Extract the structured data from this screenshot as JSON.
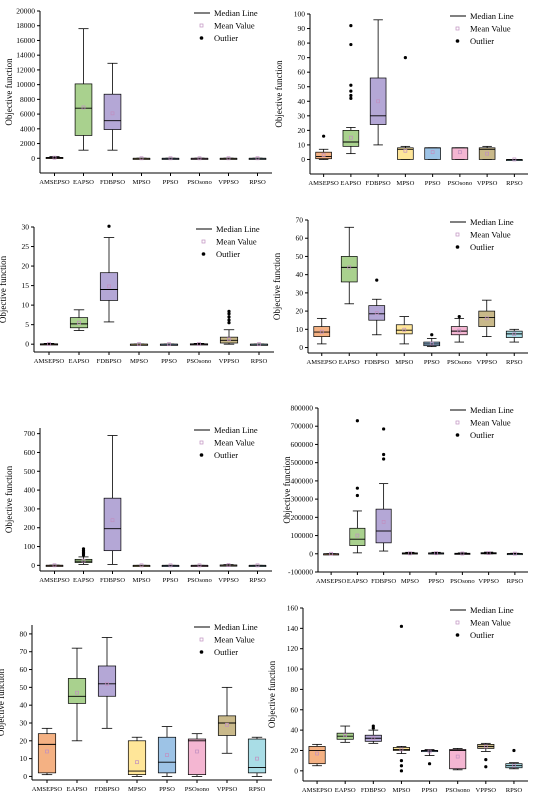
{
  "legend": {
    "median_label": "Median Line",
    "mean_label": "Mean Value",
    "outlier_label": "Outlier"
  },
  "chart_data": [
    {
      "type": "box",
      "ylabel": "Objective function",
      "ylim": [
        -2000,
        20000
      ],
      "yticks": [
        0,
        2000,
        4000,
        6000,
        8000,
        10000,
        12000,
        14000,
        16000,
        18000,
        20000
      ],
      "legend_position": "top-right",
      "categories": [
        "AMSEPSO",
        "EAPSO",
        "FDBPSO",
        "MPSO",
        "PPSO",
        "PSOsono",
        "VPPSO",
        "RPSO"
      ],
      "colors": [
        "#f4b183",
        "#a9d18e",
        "#b4a7d6",
        "#ffe699",
        "#9dc3e6",
        "#f4b6d2",
        "#c9b98a",
        "#a9dde6"
      ],
      "boxes": [
        {
          "whislo": 0,
          "q1": 20,
          "med": 60,
          "q3": 120,
          "whishi": 250,
          "mean": 80,
          "outliers": []
        },
        {
          "whislo": 1100,
          "q1": 3100,
          "med": 6800,
          "q3": 10100,
          "whishi": 17600,
          "mean": 6900,
          "outliers": []
        },
        {
          "whislo": 1100,
          "q1": 3900,
          "med": 5100,
          "q3": 8700,
          "whishi": 12900,
          "mean": 6100,
          "outliers": []
        },
        {
          "whislo": 0,
          "q1": 0,
          "med": 0,
          "q3": 0,
          "whishi": 0,
          "mean": 0,
          "outliers": []
        },
        {
          "whislo": 0,
          "q1": 0,
          "med": 0,
          "q3": 0,
          "whishi": 0,
          "mean": 0,
          "outliers": []
        },
        {
          "whislo": 0,
          "q1": 0,
          "med": 0,
          "q3": 0,
          "whishi": 0,
          "mean": 0,
          "outliers": []
        },
        {
          "whislo": 0,
          "q1": 0,
          "med": 0,
          "q3": 0,
          "whishi": 0,
          "mean": 0,
          "outliers": []
        },
        {
          "whislo": 0,
          "q1": 0,
          "med": 0,
          "q3": 0,
          "whishi": 0,
          "mean": 0,
          "outliers": []
        }
      ]
    },
    {
      "type": "box",
      "ylabel": "Objective function",
      "ylim": [
        -10,
        100
      ],
      "yticks": [
        0,
        10,
        20,
        30,
        40,
        50,
        60,
        70,
        80,
        90,
        100
      ],
      "legend_position": "top-right",
      "categories": [
        "AMSEPSO",
        "EAPSO",
        "FDBPSO",
        "MPSO",
        "PPSO",
        "PSOsono",
        "VPPSO",
        "RPSO"
      ],
      "colors": [
        "#f4b183",
        "#a9d18e",
        "#b4a7d6",
        "#ffe699",
        "#9dc3e6",
        "#f4b6d2",
        "#c9b98a",
        "#a9dde6"
      ],
      "boxes": [
        {
          "whislo": 0,
          "q1": 0.5,
          "med": 2,
          "q3": 5,
          "whishi": 7,
          "mean": 3,
          "outliers": [
            16
          ]
        },
        {
          "whislo": 4,
          "q1": 9,
          "med": 12,
          "q3": 20,
          "whishi": 22,
          "mean": 15,
          "outliers": [
            42,
            44,
            47,
            51,
            79,
            92
          ]
        },
        {
          "whislo": 10,
          "q1": 24,
          "med": 30,
          "q3": 56,
          "whishi": 96,
          "mean": 40,
          "outliers": []
        },
        {
          "whislo": 0,
          "q1": 0,
          "med": 7,
          "q3": 8,
          "whishi": 9,
          "mean": 6,
          "outliers": [
            70
          ]
        },
        {
          "whislo": 0,
          "q1": 0,
          "med": 8,
          "q3": 8,
          "whishi": 8,
          "mean": 5,
          "outliers": []
        },
        {
          "whislo": 0,
          "q1": 0,
          "med": 8,
          "q3": 8,
          "whishi": 8,
          "mean": 5,
          "outliers": []
        },
        {
          "whislo": 0,
          "q1": 0,
          "med": 7,
          "q3": 8,
          "whishi": 9,
          "mean": 4,
          "outliers": []
        },
        {
          "whislo": 0,
          "q1": 0,
          "med": 0,
          "q3": 0,
          "whishi": 0,
          "mean": 0,
          "outliers": []
        }
      ]
    },
    {
      "type": "box",
      "ylabel": "Objective function",
      "ylim": [
        -2,
        30
      ],
      "yticks": [
        0,
        5,
        10,
        15,
        20,
        25,
        30
      ],
      "legend_position": "top-right",
      "categories": [
        "AMSEPSO",
        "EAPSO",
        "FDBPSO",
        "MPSO",
        "PPSO",
        "PSOsono",
        "VPPSO",
        "RPSO"
      ],
      "colors": [
        "#f4b183",
        "#a9d18e",
        "#b4a7d6",
        "#ffe699",
        "#9dc3e6",
        "#f4b6d2",
        "#c9b98a",
        "#a9dde6"
      ],
      "boxes": [
        {
          "whislo": 0,
          "q1": 0,
          "med": 0,
          "q3": 0.1,
          "whishi": 0.2,
          "mean": 0.05,
          "outliers": []
        },
        {
          "whislo": 3.5,
          "q1": 4.2,
          "med": 5.2,
          "q3": 6.8,
          "whishi": 8.8,
          "mean": 5.5,
          "outliers": []
        },
        {
          "whislo": 5.7,
          "q1": 11.2,
          "med": 14,
          "q3": 18.3,
          "whishi": 27.3,
          "mean": 14.8,
          "outliers": [
            30.2
          ]
        },
        {
          "whislo": 0,
          "q1": 0,
          "med": 0,
          "q3": 0,
          "whishi": 0,
          "mean": 0,
          "outliers": []
        },
        {
          "whislo": 0,
          "q1": 0,
          "med": 0,
          "q3": 0,
          "whishi": 0,
          "mean": 0,
          "outliers": []
        },
        {
          "whislo": 0,
          "q1": 0,
          "med": 0,
          "q3": 0.1,
          "whishi": 0.2,
          "mean": 0.05,
          "outliers": []
        },
        {
          "whislo": 0,
          "q1": 0.3,
          "med": 1,
          "q3": 1.8,
          "whishi": 3.7,
          "mean": 1.3,
          "outliers": [
            5.5,
            6.2,
            7.0,
            7.8,
            8.4
          ]
        },
        {
          "whislo": 0,
          "q1": 0,
          "med": 0,
          "q3": 0,
          "whishi": 0,
          "mean": 0,
          "outliers": []
        }
      ]
    },
    {
      "type": "box",
      "ylabel": "Objective function",
      "ylim": [
        -3,
        70
      ],
      "yticks": [
        0,
        10,
        20,
        30,
        40,
        50,
        60,
        70
      ],
      "legend_position": "top-right",
      "categories": [
        "AMSEPSO",
        "EAPSO",
        "FDBPSO",
        "MPSO",
        "PPSO",
        "PSOsono",
        "VPPSO",
        "RPSO"
      ],
      "colors": [
        "#f4b183",
        "#a9d18e",
        "#b4a7d6",
        "#ffe699",
        "#9dc3e6",
        "#f4b6d2",
        "#c9b98a",
        "#a9dde6"
      ],
      "boxes": [
        {
          "whislo": 2,
          "q1": 6,
          "med": 8.5,
          "q3": 11.5,
          "whishi": 16,
          "mean": 8.7,
          "outliers": []
        },
        {
          "whislo": 24,
          "q1": 36,
          "med": 44,
          "q3": 50,
          "whishi": 66,
          "mean": 44,
          "outliers": []
        },
        {
          "whislo": 7,
          "q1": 15,
          "med": 18.5,
          "q3": 23,
          "whishi": 26.5,
          "mean": 19,
          "outliers": [
            37
          ]
        },
        {
          "whislo": 2,
          "q1": 7.5,
          "med": 9.5,
          "q3": 12.5,
          "whishi": 17,
          "mean": 9.8,
          "outliers": []
        },
        {
          "whislo": 0.5,
          "q1": 1,
          "med": 2,
          "q3": 3,
          "whishi": 5,
          "mean": 2.2,
          "outliers": [
            7
          ]
        },
        {
          "whislo": 3,
          "q1": 7,
          "med": 9,
          "q3": 11.5,
          "whishi": 16,
          "mean": 9.3,
          "outliers": [
            17
          ]
        },
        {
          "whislo": 6,
          "q1": 11.5,
          "med": 16.5,
          "q3": 20,
          "whishi": 26,
          "mean": 16,
          "outliers": []
        },
        {
          "whislo": 3,
          "q1": 5.5,
          "med": 7.5,
          "q3": 9,
          "whishi": 10,
          "mean": 7.3,
          "outliers": []
        }
      ]
    },
    {
      "type": "box",
      "ylabel": "Objective function",
      "ylim": [
        -30,
        730
      ],
      "yticks": [
        0,
        100,
        200,
        300,
        400,
        500,
        600,
        700
      ],
      "legend_position": "top-right",
      "categories": [
        "AMSEPSO",
        "EAPSO",
        "FDBPSO",
        "MPSO",
        "PPSO",
        "PSOsono",
        "VPPSO",
        "RPSO"
      ],
      "colors": [
        "#f4b183",
        "#a9d18e",
        "#b4a7d6",
        "#ffe699",
        "#9dc3e6",
        "#f4b6d2",
        "#c9b98a",
        "#a9dde6"
      ],
      "boxes": [
        {
          "whislo": 0,
          "q1": 0,
          "med": 0,
          "q3": 0.5,
          "whishi": 1,
          "mean": 0.3,
          "outliers": []
        },
        {
          "whislo": 5,
          "q1": 15,
          "med": 22,
          "q3": 32,
          "whishi": 45,
          "mean": 25,
          "outliers": [
            55,
            62,
            70,
            78,
            88
          ]
        },
        {
          "whislo": 5,
          "q1": 78,
          "med": 195,
          "q3": 357,
          "whishi": 690,
          "mean": 240,
          "outliers": []
        },
        {
          "whislo": 0,
          "q1": 0,
          "med": 0,
          "q3": 0,
          "whishi": 0,
          "mean": 0,
          "outliers": []
        },
        {
          "whislo": 0,
          "q1": 0,
          "med": 0,
          "q3": 0,
          "whishi": 0,
          "mean": 0,
          "outliers": []
        },
        {
          "whislo": 0,
          "q1": 0,
          "med": 0,
          "q3": 0,
          "whishi": 0,
          "mean": 0,
          "outliers": []
        },
        {
          "whislo": 0,
          "q1": 0,
          "med": 1,
          "q3": 2,
          "whishi": 4,
          "mean": 1.5,
          "outliers": []
        },
        {
          "whislo": 0,
          "q1": 0,
          "med": 0,
          "q3": 0,
          "whishi": 0,
          "mean": 0,
          "outliers": []
        }
      ]
    },
    {
      "type": "box",
      "ylabel": "Objective function",
      "ylim": [
        -100000,
        800000
      ],
      "yticks": [
        -100000,
        0,
        100000,
        200000,
        300000,
        400000,
        500000,
        600000,
        700000,
        800000
      ],
      "legend_position": "top-right",
      "categories": [
        "AMSEPSO",
        "EAPSO",
        "FDBPSO",
        "MPSO",
        "PPSO",
        "PSOsono",
        "VPPSO",
        "RPSO"
      ],
      "colors": [
        "#f4b183",
        "#a9d18e",
        "#b4a7d6",
        "#ffe699",
        "#9dc3e6",
        "#f4b6d2",
        "#c9b98a",
        "#a9dde6"
      ],
      "boxes": [
        {
          "whislo": 0,
          "q1": 0,
          "med": 0,
          "q3": 0,
          "whishi": 0,
          "mean": 0,
          "outliers": []
        },
        {
          "whislo": 5000,
          "q1": 45000,
          "med": 80000,
          "q3": 140000,
          "whishi": 235000,
          "mean": 100000,
          "outliers": [
            320000,
            360000,
            730000
          ]
        },
        {
          "whislo": 15000,
          "q1": 60000,
          "med": 125000,
          "q3": 245000,
          "whishi": 385000,
          "mean": 175000,
          "outliers": [
            520000,
            545000,
            685000
          ]
        },
        {
          "whislo": 0,
          "q1": 0,
          "med": 2000,
          "q3": 5000,
          "whishi": 8000,
          "mean": 2500,
          "outliers": []
        },
        {
          "whislo": 0,
          "q1": 1000,
          "med": 3000,
          "q3": 5000,
          "whishi": 8000,
          "mean": 3000,
          "outliers": []
        },
        {
          "whislo": 0,
          "q1": 0,
          "med": 1000,
          "q3": 3000,
          "whishi": 5000,
          "mean": 1500,
          "outliers": []
        },
        {
          "whislo": 0,
          "q1": 1000,
          "med": 3000,
          "q3": 6000,
          "whishi": 9000,
          "mean": 3500,
          "outliers": []
        },
        {
          "whislo": 0,
          "q1": 0,
          "med": 500,
          "q3": 1500,
          "whishi": 3000,
          "mean": 800,
          "outliers": []
        }
      ]
    },
    {
      "type": "box",
      "ylabel": "Objective function",
      "ylim": [
        -2,
        85
      ],
      "yticks": [
        0,
        10,
        20,
        30,
        40,
        50,
        60,
        70,
        80
      ],
      "legend_position": "top-right",
      "categories": [
        "AMSEPSO",
        "EAPSO",
        "FDBPSO",
        "MPSO",
        "PPSO",
        "PSOsono",
        "VPPSO",
        "RPSO"
      ],
      "colors": [
        "#f4b183",
        "#a9d18e",
        "#b4a7d6",
        "#ffe699",
        "#9dc3e6",
        "#f4b6d2",
        "#c9b98a",
        "#a9dde6"
      ],
      "boxes": [
        {
          "whislo": 1,
          "q1": 2,
          "med": 18,
          "q3": 24,
          "whishi": 27,
          "mean": 14,
          "outliers": []
        },
        {
          "whislo": 20,
          "q1": 41,
          "med": 45,
          "q3": 55,
          "whishi": 72,
          "mean": 47,
          "outliers": []
        },
        {
          "whislo": 27,
          "q1": 45,
          "med": 52,
          "q3": 62,
          "whishi": 78,
          "mean": 52,
          "outliers": []
        },
        {
          "whislo": 0,
          "q1": 1,
          "med": 3,
          "q3": 20,
          "whishi": 22,
          "mean": 8,
          "outliers": []
        },
        {
          "whislo": 0,
          "q1": 2,
          "med": 8,
          "q3": 22,
          "whishi": 28,
          "mean": 12,
          "outliers": []
        },
        {
          "whislo": 0,
          "q1": 1,
          "med": 20,
          "q3": 21,
          "whishi": 24,
          "mean": 14,
          "outliers": []
        },
        {
          "whislo": 13,
          "q1": 23,
          "med": 30,
          "q3": 34,
          "whishi": 50,
          "mean": 29,
          "outliers": []
        },
        {
          "whislo": 0,
          "q1": 2,
          "med": 5,
          "q3": 21,
          "whishi": 22,
          "mean": 10,
          "outliers": []
        }
      ]
    },
    {
      "type": "box",
      "ylabel": "Objective function",
      "ylim": [
        -10,
        160
      ],
      "yticks": [
        0,
        20,
        40,
        60,
        80,
        100,
        120,
        140,
        160
      ],
      "legend_position": "top-right",
      "categories": [
        "AMSEPSO",
        "EAPSO",
        "FDBPSO",
        "MPSO",
        "PPSO",
        "PSOsono",
        "VPPSO",
        "RPSO"
      ],
      "colors": [
        "#f4b183",
        "#a9d18e",
        "#b4a7d6",
        "#ffe699",
        "#9dc3e6",
        "#f4b6d2",
        "#c9b98a",
        "#a9dde6"
      ],
      "boxes": [
        {
          "whislo": 5,
          "q1": 7,
          "med": 20,
          "q3": 24,
          "whishi": 26,
          "mean": 17,
          "outliers": []
        },
        {
          "whislo": 28,
          "q1": 31,
          "med": 34,
          "q3": 37,
          "whishi": 44,
          "mean": 35,
          "outliers": []
        },
        {
          "whislo": 27,
          "q1": 29,
          "med": 32,
          "q3": 35,
          "whishi": 40,
          "mean": 32,
          "outliers": [
            42,
            44
          ]
        },
        {
          "whislo": 17,
          "q1": 20,
          "med": 21,
          "q3": 23,
          "whishi": 24,
          "mean": 21,
          "outliers": [
            0,
            5,
            10,
            142
          ]
        },
        {
          "whislo": 15,
          "q1": 19,
          "med": 20,
          "q3": 20,
          "whishi": 21,
          "mean": 19,
          "outliers": [
            7
          ]
        },
        {
          "whislo": 1,
          "q1": 2,
          "med": 20,
          "q3": 21,
          "whishi": 22,
          "mean": 14,
          "outliers": []
        },
        {
          "whislo": 19,
          "q1": 22,
          "med": 24,
          "q3": 26,
          "whishi": 27,
          "mean": 24,
          "outliers": [
            4,
            11
          ]
        },
        {
          "whislo": 2,
          "q1": 3,
          "med": 5,
          "q3": 7,
          "whishi": 8,
          "mean": 5,
          "outliers": [
            20
          ]
        }
      ]
    }
  ]
}
